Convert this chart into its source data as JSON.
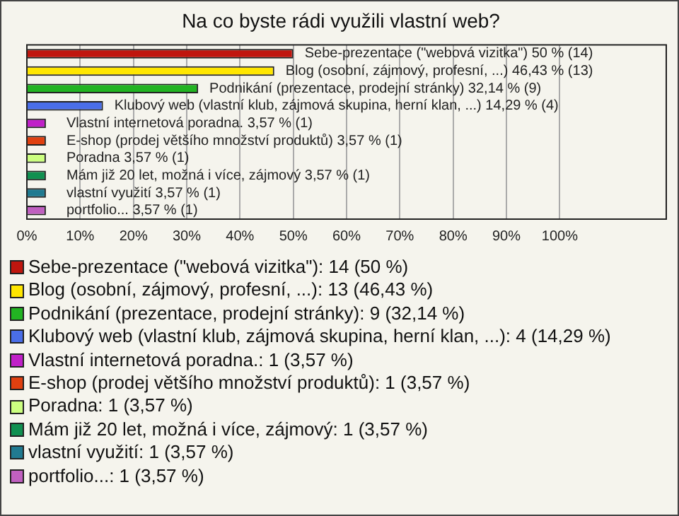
{
  "chart_data": {
    "type": "bar",
    "orientation": "horizontal",
    "title": "Na co byste rádi využili vlastní web?",
    "categories": [
      null,
      null,
      null,
      null,
      null,
      null,
      null,
      null,
      null,
      null
    ],
    "values": [
      50,
      46.43,
      32.14,
      14.29,
      3.57,
      3.57,
      3.57,
      3.57,
      3.57,
      3.57
    ],
    "colors": [
      "#c0160e",
      "#ffe600",
      "#22b422",
      "#4a6ee8",
      "#c020c8",
      "#e04010",
      "#ccff80",
      "#109050",
      "#207a90",
      "#c060c0"
    ],
    "value_labels": [
      "Sebe-prezentace (\"webová vizitka\") 50 % (14)",
      "Blog (osobní, zájmový, profesní, ...) 46,43 % (13)",
      "Podnikání (prezentace, prodejní stránky) 32,14 % (9)",
      "Klubový web (vlastní klub, zájmová skupina, herní klan, ...) 14,29 % (4)",
      "Vlastní internetová poradna. 3,57 % (1)",
      "E-shop (prodej většího množství produktů) 3,57 % (1)",
      "Poradna 3,57 % (1)",
      "Mám již 20 let, možná i více, zájmový 3,57 % (1)",
      "vlastní využití 3,57 % (1)",
      "portfolio... 3,57 % (1)"
    ],
    "xlim": [
      0,
      120
    ],
    "xticks": [
      {
        "value": 0,
        "label": "0%"
      },
      {
        "value": 10,
        "label": "10%"
      },
      {
        "value": 20,
        "label": "20%"
      },
      {
        "value": 30,
        "label": "30%"
      },
      {
        "value": 40,
        "label": "40%"
      },
      {
        "value": 50,
        "label": "50%"
      },
      {
        "value": 60,
        "label": "60%"
      },
      {
        "value": 70,
        "label": "70%"
      },
      {
        "value": 80,
        "label": "80%"
      },
      {
        "value": 90,
        "label": "90%"
      },
      {
        "value": 100,
        "label": "100%"
      }
    ],
    "grid": "x",
    "annotations": [
      "Sebe-prezentace (\"webová vizitka\"): 14 (50 %)",
      "Blog (osobní, zájmový, profesní, ...): 13 (46,43 %)",
      "Podnikání (prezentace, prodejní stránky): 9 (32,14 %)",
      "Klubový web (vlastní klub, zájmová skupina, herní klan, ...): 4 (14,29 %)",
      "Vlastní internetová poradna.: 1 (3,57 %)",
      "E-shop (prodej většího množství produktů): 1 (3,57 %)",
      "Poradna: 1 (3,57 %)",
      "Mám již 20 let, možná i více, zájmový: 1 (3,57 %)",
      "vlastní využití: 1 (3,57 %)",
      "portfolio...: 1 (3,57 %)"
    ]
  }
}
